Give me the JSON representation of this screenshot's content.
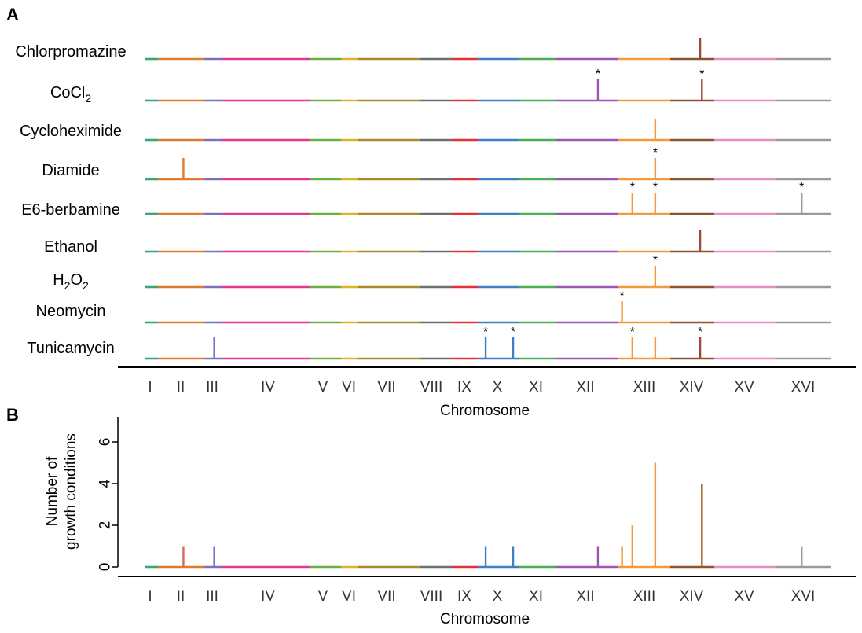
{
  "chart_data": [
    {
      "panel": "A",
      "type": "genome-track",
      "xlabel": "Chromosome",
      "chromosomes": [
        "I",
        "II",
        "III",
        "IV",
        "V",
        "VI",
        "VII",
        "VIII",
        "IX",
        "X",
        "XI",
        "XII",
        "XIII",
        "XIV",
        "XV",
        "XVI"
      ],
      "chromosome_colors": [
        "#3aa57a",
        "#e07b2e",
        "#7b6fc0",
        "#e0398f",
        "#6cb044",
        "#e3b02a",
        "#a68a2c",
        "#6e6e6e",
        "#e23236",
        "#3f7fc4",
        "#4aae55",
        "#9b58b0",
        "#f39a3c",
        "#8b5534",
        "#e88dc3",
        "#9a9a9a"
      ],
      "tracks": [
        {
          "label": "Chlorpromazine",
          "peaks": [
            {
              "chromosome": "XIV",
              "pos": 0.68,
              "color": "#a0473a",
              "star": false
            }
          ]
        },
        {
          "label_main": "CoCl",
          "label_sub": "2",
          "peaks": [
            {
              "chromosome": "XII",
              "pos": 0.67,
              "color": "#9b58b0",
              "star": true
            },
            {
              "chromosome": "XIV",
              "pos": 0.72,
              "color": "#a0473a",
              "star": true
            }
          ]
        },
        {
          "label": "Cycloheximide",
          "peaks": [
            {
              "chromosome": "XIII",
              "pos": 0.71,
              "color": "#f39a3c",
              "star": false
            }
          ]
        },
        {
          "label": "Diamide",
          "peaks": [
            {
              "chromosome": "II",
              "pos": 0.55,
              "color": "#e07b2e",
              "star": false
            },
            {
              "chromosome": "XIII",
              "pos": 0.71,
              "color": "#f39a3c",
              "star": true
            }
          ]
        },
        {
          "label": "E6-berbamine",
          "peaks": [
            {
              "chromosome": "XIII",
              "pos": 0.27,
              "color": "#f39a3c",
              "star": true
            },
            {
              "chromosome": "XIII",
              "pos": 0.71,
              "color": "#f39a3c",
              "star": true
            },
            {
              "chromosome": "XVI",
              "pos": 0.46,
              "color": "#9a9a9a",
              "star": true
            }
          ]
        },
        {
          "label": "Ethanol",
          "peaks": [
            {
              "chromosome": "XIV",
              "pos": 0.68,
              "color": "#a0473a",
              "star": false
            }
          ]
        },
        {
          "label_main": "H",
          "label_sub": "2",
          "label_main2": "O",
          "label_sub2": "2",
          "peaks": [
            {
              "chromosome": "XIII",
              "pos": 0.71,
              "color": "#f39a3c",
              "star": true
            }
          ]
        },
        {
          "label": "Neomycin",
          "peaks": [
            {
              "chromosome": "XIII",
              "pos": 0.07,
              "color": "#f39a3c",
              "star": true
            }
          ]
        },
        {
          "label": "Tunicamycin",
          "peaks": [
            {
              "chromosome": "III",
              "pos": 0.55,
              "color": "#7b6fc0",
              "star": false
            },
            {
              "chromosome": "X",
              "pos": 0.19,
              "color": "#3f7fc4",
              "star": true
            },
            {
              "chromosome": "X",
              "pos": 0.85,
              "color": "#3f7fc4",
              "star": true
            },
            {
              "chromosome": "XIII",
              "pos": 0.27,
              "color": "#f39a3c",
              "star": true
            },
            {
              "chromosome": "XIII",
              "pos": 0.71,
              "color": "#f39a3c",
              "star": false
            },
            {
              "chromosome": "XIV",
              "pos": 0.68,
              "color": "#a0473a",
              "star": true
            }
          ]
        }
      ]
    },
    {
      "panel": "B",
      "type": "bar",
      "xlabel": "Chromosome",
      "ylabel_line1": "Number of",
      "ylabel_line2": "growth conditions",
      "ylim": [
        0,
        7
      ],
      "yticks": [
        0,
        2,
        4,
        6
      ],
      "bars": [
        {
          "chromosome": "II",
          "pos": 0.55,
          "value": 1,
          "color": "#d9685a"
        },
        {
          "chromosome": "III",
          "pos": 0.55,
          "value": 1,
          "color": "#7b6fc0"
        },
        {
          "chromosome": "X",
          "pos": 0.19,
          "value": 1,
          "color": "#3f7fc4"
        },
        {
          "chromosome": "X",
          "pos": 0.85,
          "value": 1,
          "color": "#3f7fc4"
        },
        {
          "chromosome": "XII",
          "pos": 0.67,
          "value": 1,
          "color": "#9b58b0"
        },
        {
          "chromosome": "XIII",
          "pos": 0.07,
          "value": 1,
          "color": "#f39a3c"
        },
        {
          "chromosome": "XIII",
          "pos": 0.27,
          "value": 2,
          "color": "#f39a3c"
        },
        {
          "chromosome": "XIII",
          "pos": 0.71,
          "value": 5,
          "color": "#f39a3c"
        },
        {
          "chromosome": "XIV",
          "pos": 0.72,
          "value": 4,
          "color": "#a0601e"
        },
        {
          "chromosome": "XVI",
          "pos": 0.46,
          "value": 1,
          "color": "#9a9a9a"
        }
      ]
    }
  ],
  "panel_labels": {
    "a": "A",
    "b": "B"
  },
  "star_symbol": "*"
}
